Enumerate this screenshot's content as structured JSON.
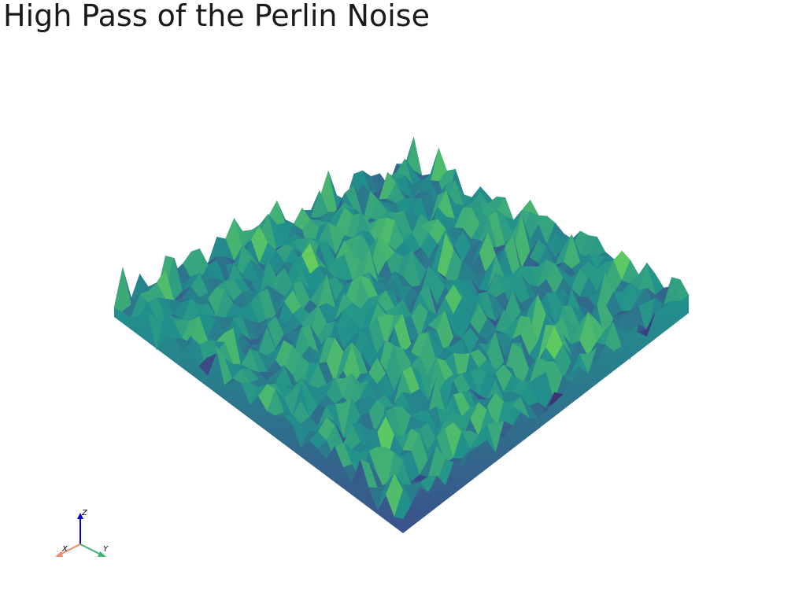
{
  "title": "High Pass of the Perlin Noise",
  "colormap": {
    "name": "viridis",
    "colors": [
      "#440154",
      "#3b528b",
      "#21918c",
      "#5ec962",
      "#fde725"
    ]
  },
  "orientation_widget": {
    "x_label": "X",
    "y_label": "Y",
    "z_label": "Z",
    "x_color": "#f08a6a",
    "y_color": "#3cb371",
    "z_color": "#0000cc"
  }
}
